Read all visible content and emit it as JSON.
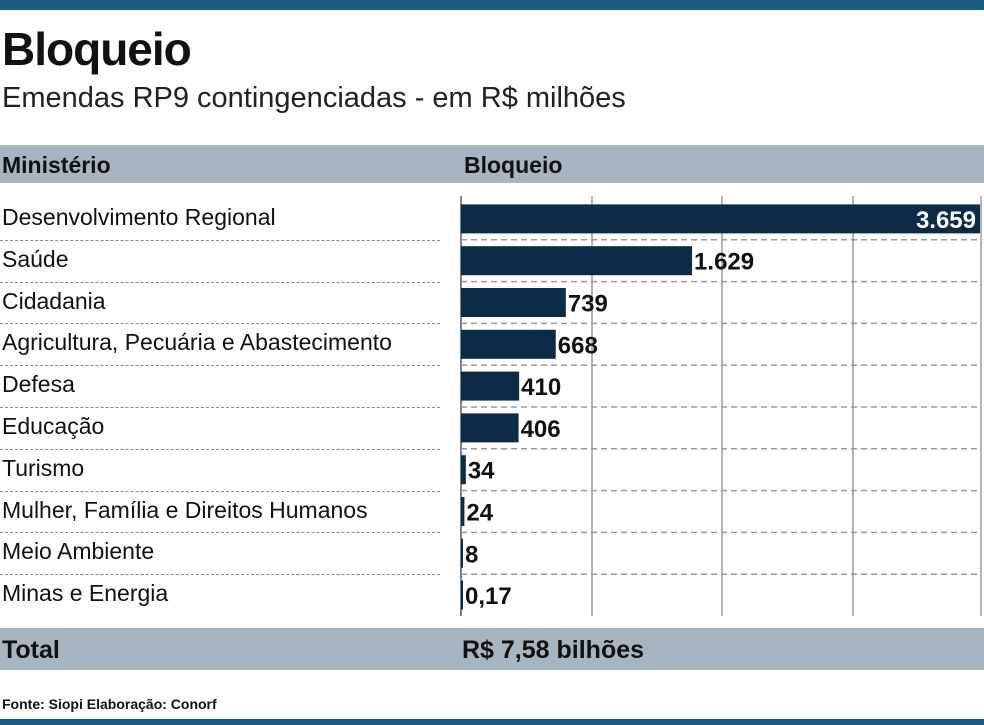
{
  "title": "Bloqueio",
  "subtitle": "Emendas RP9 contingenciadas - em R$ milhões",
  "header": {
    "col1": "Ministério",
    "col2": "Bloqueio"
  },
  "total": {
    "label": "Total",
    "value": "R$ 7,58 bilhões"
  },
  "source": "Fonte: Siopi Elaboração: Conorf",
  "colors": {
    "bar": "#0d2a47",
    "band": "#a6b5bf",
    "accent": "#1a5b80"
  },
  "chart_data": {
    "type": "bar",
    "orientation": "horizontal",
    "categories": [
      "Desenvolvimento Regional",
      "Saúde",
      "Cidadania",
      "Agricultura, Pecuária e Abastecimento",
      "Defesa",
      "Educação",
      "Turismo",
      "Mulher, Família e Direitos Humanos",
      "Meio Ambiente",
      "Minas e Energia"
    ],
    "values": [
      3659,
      1629,
      739,
      668,
      410,
      406,
      34,
      24,
      8,
      0.17
    ],
    "value_labels": [
      "3.659",
      "1.629",
      "739",
      "668",
      "410",
      "406",
      "34",
      "24",
      "8",
      "0,17"
    ],
    "xlim": [
      0,
      3659
    ],
    "grid": true
  }
}
